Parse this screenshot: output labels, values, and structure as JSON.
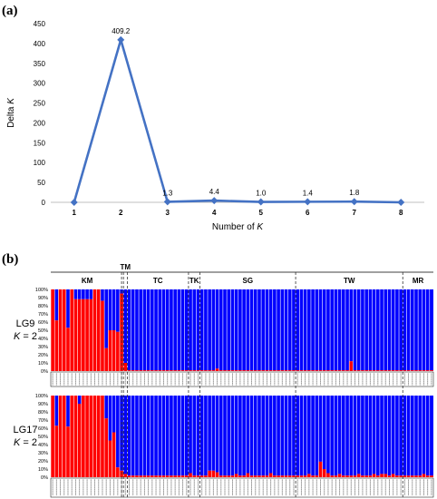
{
  "figure": {
    "panel_a_label": "(a)",
    "panel_b_label": "(b)"
  },
  "chart_data": [
    {
      "type": "line",
      "panel": "(a)",
      "x": [
        1,
        2,
        3,
        4,
        5,
        6,
        7,
        8
      ],
      "values": [
        0,
        409.2,
        1.3,
        4.4,
        1.0,
        1.4,
        1.8,
        0
      ],
      "data_labels": [
        "",
        "409.2",
        "1.3",
        "4.4",
        "1.0",
        "1.4",
        "1.8",
        ""
      ],
      "title": "",
      "xlabel_prefix": "Number of ",
      "xlabel_var": "K",
      "ylabel_prefix": "Delta ",
      "ylabel_var": "K",
      "ylim": [
        0,
        450
      ],
      "yticks": [
        0,
        50,
        100,
        150,
        200,
        250,
        300,
        350,
        400,
        450
      ],
      "xticks": [
        "1",
        "2",
        "3",
        "4",
        "5",
        "6",
        "7",
        "8"
      ],
      "line_color": "#4472C4",
      "marker": "diamond",
      "grid": false,
      "legend": "none"
    },
    {
      "type": "bar",
      "stacked": true,
      "panel": "(b)",
      "populations": [
        {
          "name": "KM",
          "count": 19
        },
        {
          "name": "TM",
          "count": 1
        },
        {
          "name": "TC",
          "count": 16
        },
        {
          "name": "TK",
          "count": 3
        },
        {
          "name": "SG",
          "count": 25
        },
        {
          "name": "TW",
          "count": 28
        },
        {
          "name": "MR",
          "count": 8
        }
      ],
      "yticks": [
        "0%",
        "10%",
        "20%",
        "30%",
        "40%",
        "50%",
        "60%",
        "70%",
        "80%",
        "90%",
        "100%"
      ],
      "colors": {
        "cluster_1": "#FF0000",
        "cluster_2": "#0000FF"
      },
      "rows": [
        {
          "label": "LG9",
          "k_var": "K",
          "k_rest": " = 2",
          "red_fraction": [
            1.0,
            0.62,
            1.0,
            1.0,
            0.53,
            1.0,
            0.88,
            0.88,
            0.88,
            0.88,
            0.88,
            1.0,
            1.0,
            0.86,
            0.28,
            0.5,
            0.5,
            0.48,
            0.95,
            0.1,
            0.01,
            0.01,
            0.01,
            0.01,
            0.01,
            0.01,
            0.01,
            0.01,
            0.01,
            0.01,
            0.01,
            0.01,
            0.01,
            0.01,
            0.01,
            0.01,
            0.01,
            0.01,
            0.01,
            0.01,
            0.01,
            0.01,
            0.01,
            0.03,
            0.01,
            0.01,
            0.01,
            0.01,
            0.01,
            0.01,
            0.01,
            0.01,
            0.01,
            0.01,
            0.01,
            0.01,
            0.01,
            0.01,
            0.01,
            0.01,
            0.01,
            0.01,
            0.01,
            0.01,
            0.01,
            0.01,
            0.01,
            0.01,
            0.01,
            0.01,
            0.01,
            0.01,
            0.01,
            0.01,
            0.01,
            0.01,
            0.01,
            0.01,
            0.12,
            0.01,
            0.01,
            0.01,
            0.01,
            0.01,
            0.01,
            0.01,
            0.01,
            0.01,
            0.01,
            0.01,
            0.01,
            0.01,
            0.01,
            0.01,
            0.01,
            0.01,
            0.01,
            0.01,
            0.01,
            0.01
          ]
        },
        {
          "label": "LG17",
          "k_var": "K",
          "k_rest": " = 2",
          "red_fraction": [
            1.0,
            0.63,
            1.0,
            1.0,
            0.62,
            1.0,
            1.0,
            0.9,
            1.0,
            1.0,
            1.0,
            1.0,
            1.0,
            1.0,
            0.72,
            0.45,
            0.55,
            0.12,
            0.08,
            0.04,
            0.02,
            0.02,
            0.02,
            0.02,
            0.02,
            0.02,
            0.02,
            0.02,
            0.02,
            0.02,
            0.02,
            0.02,
            0.02,
            0.02,
            0.02,
            0.02,
            0.05,
            0.02,
            0.02,
            0.02,
            0.02,
            0.08,
            0.08,
            0.06,
            0.02,
            0.02,
            0.02,
            0.02,
            0.04,
            0.02,
            0.02,
            0.05,
            0.02,
            0.02,
            0.02,
            0.02,
            0.02,
            0.05,
            0.02,
            0.02,
            0.02,
            0.02,
            0.02,
            0.02,
            0.02,
            0.02,
            0.02,
            0.04,
            0.02,
            0.02,
            0.19,
            0.1,
            0.05,
            0.02,
            0.02,
            0.04,
            0.02,
            0.02,
            0.02,
            0.02,
            0.04,
            0.02,
            0.02,
            0.02,
            0.04,
            0.02,
            0.04,
            0.04,
            0.02,
            0.04,
            0.02,
            0.02,
            0.02,
            0.02,
            0.02,
            0.02,
            0.02,
            0.04,
            0.02,
            0.02
          ]
        }
      ],
      "legend": "none"
    }
  ]
}
